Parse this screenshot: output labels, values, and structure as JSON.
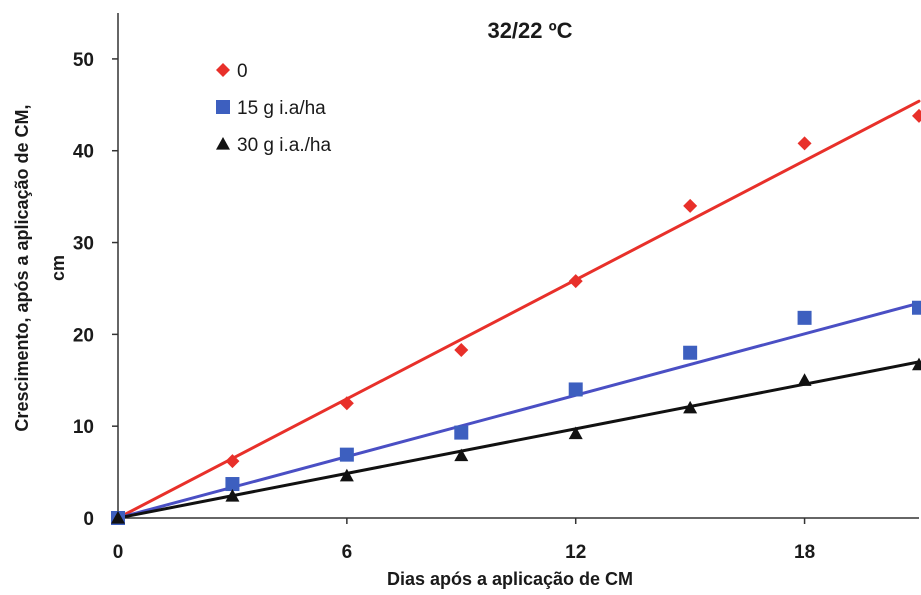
{
  "chart_data": {
    "type": "scatter",
    "title": "32/22 ºC",
    "xlabel": "Dias após a aplicação de CM",
    "ylabel_line1": "Crescimento, após a aplicação de CM,",
    "ylabel_line2": "cm",
    "xlim": [
      0,
      21
    ],
    "ylim": [
      0,
      55
    ],
    "xticks": [
      0,
      6,
      12,
      18
    ],
    "yticks": [
      0,
      10,
      20,
      30,
      40,
      50
    ],
    "xtick_labels": [
      "0",
      "6",
      "12",
      "18"
    ],
    "ytick_labels": [
      "0",
      "10",
      "20",
      "30",
      "40",
      "50"
    ],
    "grid": false,
    "legend_position": "top-left",
    "series": [
      {
        "name": "0",
        "marker": "diamond",
        "color": "#e8302a",
        "x": [
          0,
          3,
          6,
          9,
          12,
          15,
          18,
          21
        ],
        "y": [
          0,
          6.2,
          12.5,
          18.3,
          25.8,
          34.0,
          40.8,
          43.8
        ],
        "trendline": [
          [
            0,
            0
          ],
          [
            21,
            45.4
          ]
        ]
      },
      {
        "name": "15 g i.a/ha",
        "marker": "square",
        "color": "#3d5fbf",
        "x": [
          0,
          3,
          6,
          9,
          12,
          15,
          18,
          21
        ],
        "y": [
          0,
          3.7,
          6.9,
          9.3,
          14.0,
          18.0,
          21.8,
          22.9
        ],
        "trendline": [
          [
            0,
            0
          ],
          [
            21,
            23.4
          ]
        ]
      },
      {
        "name": "30 g i.a./ha",
        "marker": "triangle",
        "color": "#111111",
        "x": [
          0,
          3,
          6,
          9,
          12,
          15,
          18,
          21
        ],
        "y": [
          0,
          2.4,
          4.6,
          6.8,
          9.2,
          12.0,
          15.0,
          16.7
        ],
        "trendline": [
          [
            0,
            0
          ],
          [
            21,
            17.0
          ]
        ]
      }
    ]
  },
  "colors": {
    "trendline_0": "#e8302a",
    "trendline_15": "#4a4fc4",
    "trendline_30": "#111111",
    "axis": "#333333"
  }
}
